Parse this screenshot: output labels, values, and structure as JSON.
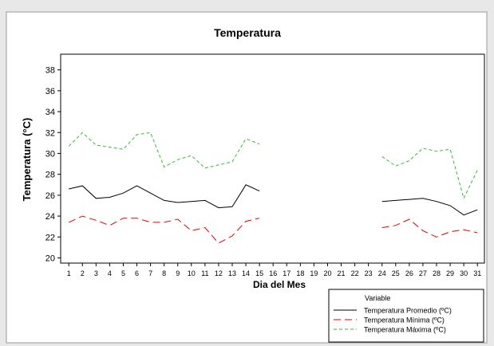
{
  "chart_data": {
    "type": "line",
    "title": "Temperatura",
    "xlabel": "Dia del Mes",
    "ylabel": "Temperatura  (°C)",
    "xlim": [
      1,
      31
    ],
    "ylim": [
      19.5,
      39.5
    ],
    "yticks": [
      20,
      22,
      24,
      26,
      28,
      30,
      32,
      34,
      36,
      38
    ],
    "xticks": [
      1,
      2,
      3,
      4,
      5,
      6,
      7,
      8,
      9,
      10,
      11,
      12,
      13,
      14,
      15,
      16,
      17,
      18,
      19,
      20,
      21,
      22,
      23,
      24,
      25,
      26,
      27,
      28,
      29,
      30,
      31
    ],
    "grid": false,
    "legend": {
      "title": "Variable",
      "placement": "bottom-right"
    },
    "x": [
      1,
      2,
      3,
      4,
      5,
      6,
      7,
      8,
      9,
      10,
      11,
      12,
      13,
      14,
      15,
      16,
      17,
      18,
      19,
      20,
      21,
      22,
      23,
      24,
      25,
      26,
      27,
      28,
      29,
      30,
      31
    ],
    "series": [
      {
        "name": "Temperatura Promedio (ºC)",
        "color": "#000000",
        "dash": "solid",
        "values": [
          26.6,
          26.9,
          25.7,
          25.8,
          26.2,
          26.9,
          26.2,
          25.5,
          25.3,
          25.4,
          25.5,
          24.8,
          24.9,
          27.0,
          26.4,
          null,
          null,
          null,
          null,
          null,
          null,
          null,
          null,
          25.4,
          25.5,
          25.6,
          25.7,
          25.4,
          25.0,
          24.1,
          24.6
        ]
      },
      {
        "name": "Temperatura Mínima (ºC)",
        "color": "#e00000",
        "dash": "long",
        "values": [
          23.4,
          24.0,
          23.6,
          23.1,
          23.8,
          23.8,
          23.4,
          23.4,
          23.7,
          22.6,
          22.9,
          21.4,
          22.1,
          23.5,
          23.8,
          null,
          null,
          null,
          null,
          null,
          null,
          null,
          null,
          22.9,
          23.1,
          23.7,
          22.6,
          22.0,
          22.5,
          22.7,
          22.4
        ]
      },
      {
        "name": "Temperatura Máxima (ºC)",
        "color": "#33bb33",
        "dash": "short",
        "values": [
          30.7,
          32.0,
          30.8,
          30.6,
          30.4,
          31.8,
          32.0,
          28.7,
          29.4,
          29.8,
          28.6,
          28.9,
          29.2,
          31.4,
          30.9,
          null,
          null,
          null,
          null,
          null,
          null,
          null,
          null,
          29.7,
          28.8,
          29.3,
          30.5,
          30.2,
          30.4,
          25.7,
          28.4
        ]
      }
    ]
  }
}
